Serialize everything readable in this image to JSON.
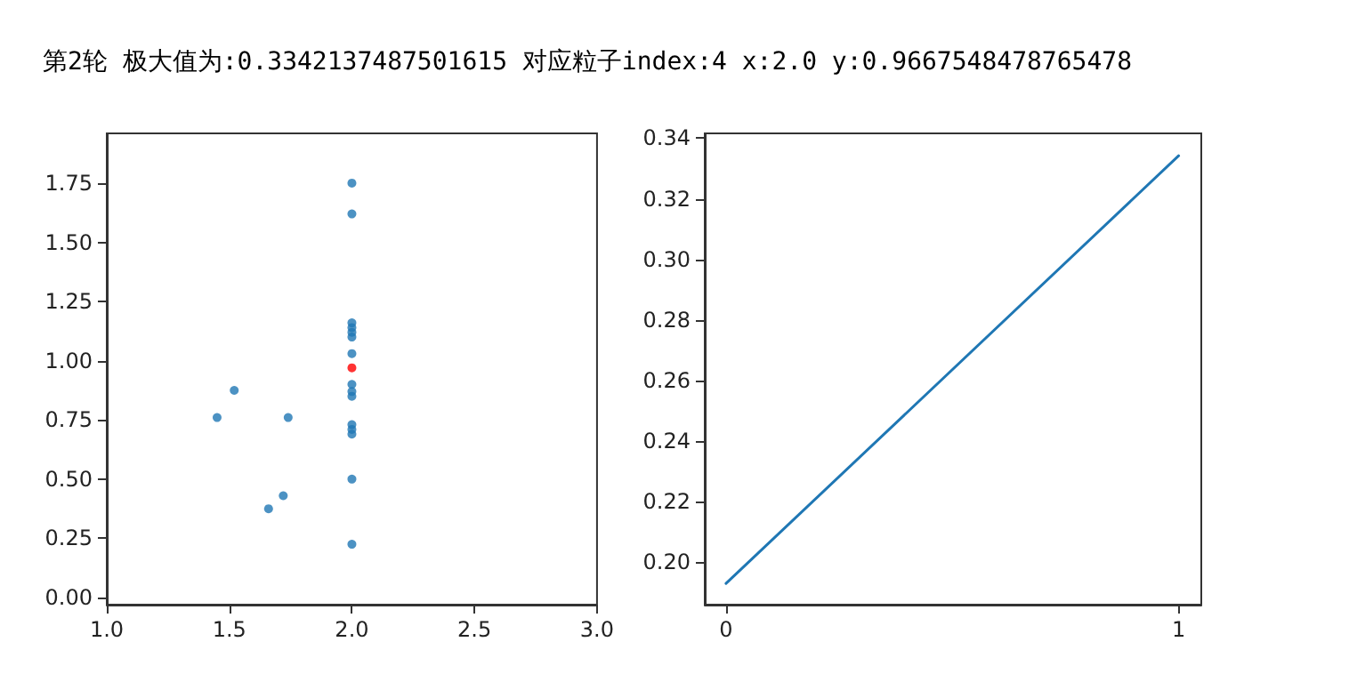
{
  "chart_data": [
    {
      "type": "scatter",
      "title": "第2轮 极大值为:0.3342137487501615 对应粒子index:4 x:2.0 y:0.9667548478765478",
      "marker": "circle",
      "grid": false,
      "xlim": [
        1.0,
        3.0
      ],
      "xticks": [
        {
          "value": 1.0,
          "label": "1.0"
        },
        {
          "value": 1.5,
          "label": "1.5"
        },
        {
          "value": 2.0,
          "label": "2.0"
        },
        {
          "value": 2.5,
          "label": "2.5"
        },
        {
          "value": 3.0,
          "label": "3.0"
        }
      ],
      "ylim": [
        -0.03,
        1.96
      ],
      "yticks": [
        {
          "value": 0,
          "label": "0.00"
        },
        {
          "value": 0.25,
          "label": "0.25"
        },
        {
          "value": 0.5,
          "label": "0.50"
        },
        {
          "value": 0.75,
          "label": "0.75"
        },
        {
          "value": 1.0,
          "label": "1.00"
        },
        {
          "value": 1.25,
          "label": "1.25"
        },
        {
          "value": 1.5,
          "label": "1.50"
        },
        {
          "value": 1.75,
          "label": "1.75"
        }
      ],
      "series": [
        {
          "color": "#1f77b4",
          "x": [
            2.0,
            2.0,
            2.0,
            2.0,
            2.0,
            2.0,
            2.0,
            2.0,
            2.0,
            2.0,
            2.0,
            2.0,
            2.0,
            2.0,
            2.0,
            1.45,
            1.52,
            1.74,
            1.72,
            1.66
          ],
          "values": [
            1.75,
            1.62,
            1.16,
            1.14,
            1.12,
            1.1,
            1.03,
            0.9,
            0.87,
            0.85,
            0.73,
            0.71,
            0.69,
            0.5,
            0.225,
            0.76,
            0.875,
            0.76,
            0.43,
            0.375
          ]
        },
        {
          "color": "#ff0000",
          "x": [
            2.0
          ],
          "values": [
            0.97
          ]
        }
      ]
    },
    {
      "type": "line",
      "grid": false,
      "marker": "none",
      "line_style": "solid",
      "xlim": [
        -0.047,
        1.05
      ],
      "xticks": [
        0,
        1
      ],
      "ylim": [
        0.186,
        0.3416
      ],
      "yticks": [
        {
          "value": 0.2,
          "label": "0.20"
        },
        {
          "value": 0.22,
          "label": "0.22"
        },
        {
          "value": 0.24,
          "label": "0.24"
        },
        {
          "value": 0.26,
          "label": "0.26"
        },
        {
          "value": 0.28,
          "label": "0.28"
        },
        {
          "value": 0.3,
          "label": "0.30"
        },
        {
          "value": 0.32,
          "label": "0.32"
        },
        {
          "value": 0.34,
          "label": "0.34"
        }
      ],
      "series": [
        {
          "color": "#1f77b4",
          "x": [
            0,
            1
          ],
          "values": [
            0.193,
            0.3342
          ]
        }
      ]
    }
  ]
}
